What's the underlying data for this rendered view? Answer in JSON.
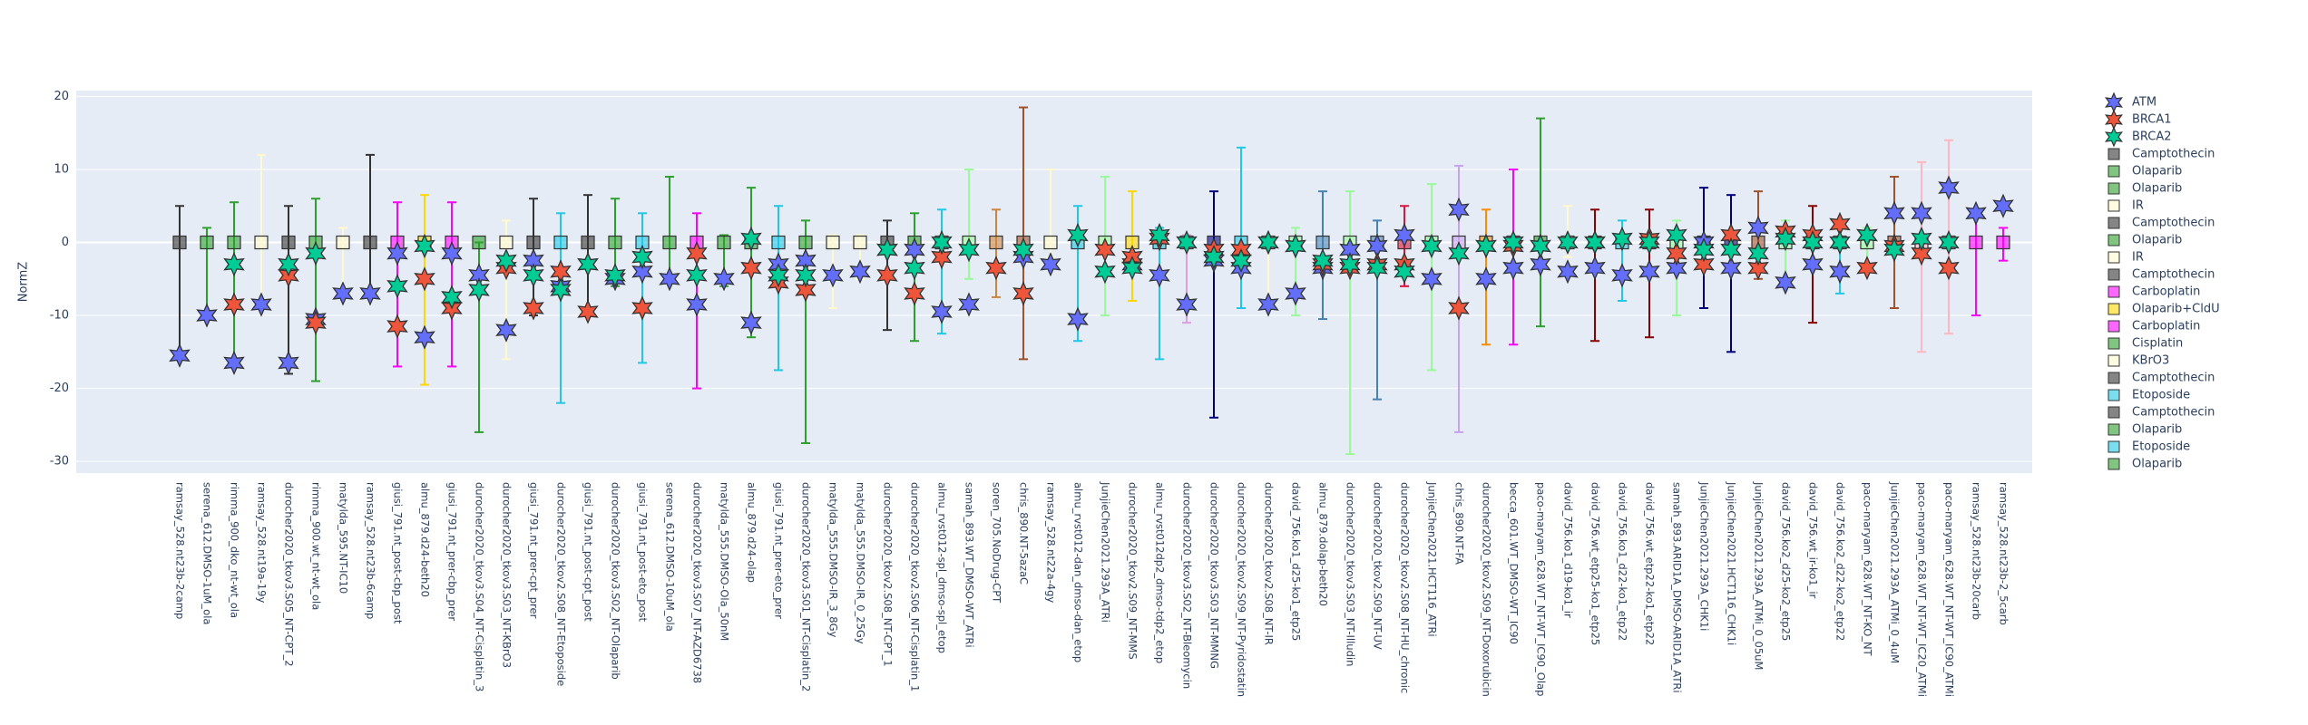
{
  "chart_data": {
    "type": "scatter",
    "y_label": "NormZ",
    "ylim": [
      -31.6,
      20.8
    ],
    "yticks": [
      -30,
      -20,
      -10,
      0,
      10,
      20
    ],
    "grid": true,
    "legend_position": "right",
    "categories": [
      "ramsay_528.nt23b-2camp",
      "serena_612.DMSO-1uM_ola",
      "rimma_900_dko_nt-wt_ola",
      "ramsay_528.nt19a-19y",
      "durocher2020_tkov3.S05_NT-CPT_2",
      "rimma_900.wt_nt-wt_ola",
      "matylda_595.NT-IC10",
      "ramsay_528.nt23b-6camp",
      "giusi_791.nt_post-cbp_post",
      "almu_879.d24-beth20",
      "giusi_791.nt_prer-cbp_prer",
      "durocher2020_tkov3.S04_NT-Cisplatin_3",
      "durocher2020_tkov3.S03_NT-KBrO3",
      "giusi_791.nt_prer-cpt_prer",
      "durocher2020_tkov2.S08_NT-Etoposide",
      "giusi_791.nt_post-cpt_post",
      "durocher2020_tkov3.S02_NT-Olaparib",
      "giusi_791.nt_post-eto_post",
      "serena_612.DMSO-10uM_ola",
      "durocher2020_tkov3.S07_NT-AZD6738",
      "matylda_555.DMSO-Ola_50nM",
      "almu_879.d24-olap",
      "giusi_791.nt_prer-eto_prer",
      "durocher2020_tkov3.S01_NT-Cisplatin_2",
      "matylda_555.DMSO-IR_3_8Gy",
      "matylda_555.DMSO-IR_0_25Gy",
      "durocher2020_tkov2.S08_NT-CPT_1",
      "durocher2020_tkov2.S06_NT-Cisplatin_1",
      "almu_rvst012-spl_dmso-spl_etop",
      "samah_893.WT_DMSO-WT_ATRi",
      "soren_705.NoDrug-CPT",
      "chris_890.NT-5azaC",
      "ramsay_528.nt22a-4gy",
      "almu_rvst012-dan_dmso-dan_etop",
      "JunjieChen2021.293A_ATRi",
      "durocher2020_tkov2.S09_NT-MMS",
      "almu_rvst012dp2_dmso-tdp2_etop",
      "durocher2020_tkov3.S02_NT-Bleomycin",
      "durocher2020_tkov3.S03_NT-MMNG",
      "durocher2020_tkov2.S09_NT-Pyridostatin",
      "durocher2020_tkov2.S08_NT-IR",
      "david_756.ko1_d25-ko1_etp25",
      "almu_879.dolap-beth20",
      "durocher2020_tkov3.S03_NT-Illudin",
      "durocher2020_tkov2.S09_NT-UV",
      "durocher2020_tkov2.S08_NT-HU_chronic",
      "JunjieChen2021.HCT116_ATRi",
      "chris_890.NT-FA",
      "durocher2020_tkov2.S09_NT-Doxorubicin",
      "becca_601.WT_DMSO-WT_IC90",
      "paco-maryam_628.WT_NT-WT_IC90_Olap",
      "david_756.ko1_d19-ko1_ir",
      "david_756.wt_etp25-ko1_etp25",
      "david_756.ko1_d22-ko1_etp22",
      "david_756.wt_etp22-ko1_etp22",
      "samah_893.ARID1A_DMSO-ARID1A_ATRi",
      "JunjieChen2021.293A_CHK1i",
      "JunjieChen2021.HCT116_CHK1i",
      "JunjieChen2021.293A_ATMi_0_05uM",
      "david_756.ko2_d25-ko2_etp25",
      "david_756.wt_ir-ko1_ir",
      "david_756.ko2_d22-ko2_etp22",
      "paco-maryam_628.WT_NT-KO_NT",
      "JunjieChen2021.293A_ATMi_0_4uM",
      "paco-maryam_628.WT_NT-WT_IC20_ATMi",
      "paco-maryam_628.WT_NT-WT_IC90_ATMi",
      "ramsay_528.nt23b-20carb",
      "ramsay_528.nt23b-2_5carb"
    ],
    "series": [
      {
        "name": "ATM",
        "color": "#636efa",
        "values": [
          -15.5,
          -10,
          -16.5,
          -8.5,
          -16.5,
          -10.5,
          -7,
          -7,
          -1.5,
          -13,
          -1.5,
          -4.5,
          -12,
          -2.5,
          -6,
          -3,
          -5,
          -4,
          -5,
          -8.5,
          -5,
          -11,
          -3,
          -2.5,
          -4.5,
          -4,
          -1,
          -1,
          -9.5,
          -8.5,
          null,
          -2,
          -3,
          -10.5,
          null,
          -3,
          -4.5,
          -8.5,
          -2.5,
          -3.5,
          -8.5,
          -7,
          -3.5,
          -1,
          -0.5,
          1,
          -5,
          4.5,
          -5,
          -3.5,
          -3,
          -4,
          -3.5,
          -4.5,
          -4,
          -3.5,
          0,
          -3.5,
          2,
          -5.5,
          -3,
          -4,
          1,
          4,
          4,
          7.5,
          4,
          5
        ]
      },
      {
        "name": "BRCA1",
        "color": "#ef553b",
        "values": [
          null,
          null,
          -8.5,
          null,
          -4.5,
          -11,
          null,
          null,
          -11.5,
          -5,
          -9,
          null,
          -3.5,
          -9,
          -4,
          -9.5,
          null,
          -9,
          null,
          -1.5,
          null,
          -3.5,
          -5.5,
          -6.5,
          null,
          null,
          -4.5,
          -7,
          -2,
          null,
          -3.5,
          -7,
          null,
          null,
          -1,
          -2,
          0.5,
          null,
          -1,
          -1,
          0,
          -0.5,
          -3,
          -3.5,
          -3,
          -3,
          null,
          -9,
          -0.5,
          -0.5,
          -0.5,
          null,
          0,
          null,
          0.5,
          -1.5,
          -3,
          1,
          -3.5,
          1.5,
          1,
          2.5,
          -3.5,
          -0.5,
          -1.5,
          -3.5,
          null,
          null
        ]
      },
      {
        "name": "BRCA2",
        "color": "#00cc96",
        "values": [
          null,
          null,
          -3,
          null,
          -3,
          -1.5,
          null,
          null,
          -6,
          -0.5,
          -7.5,
          -6.5,
          -2.5,
          -4.5,
          -6.5,
          -3,
          -4.5,
          -2,
          null,
          -4.5,
          null,
          0.5,
          -4.5,
          -4.5,
          null,
          null,
          -1,
          -3.5,
          0,
          -1,
          null,
          -1,
          null,
          1,
          -4,
          -3.5,
          1,
          0,
          -2,
          -2.5,
          0,
          -0.5,
          -2.5,
          -3,
          -3.5,
          -4,
          -0.5,
          -1.5,
          -0.5,
          0,
          -0.5,
          0,
          0,
          0.5,
          0,
          1,
          -1,
          -1,
          -1.5,
          0.5,
          0,
          0,
          1,
          -1,
          0.5,
          0,
          null,
          null
        ]
      }
    ],
    "treatments": {
      "values": [
        0,
        0,
        0,
        0,
        0,
        0,
        0,
        0,
        0,
        0,
        0,
        0,
        0,
        0,
        0,
        0,
        0,
        0,
        0,
        0,
        0,
        0,
        0,
        0,
        0,
        0,
        0,
        0,
        0,
        0,
        0,
        0,
        0,
        0,
        0,
        0,
        0,
        0,
        0,
        0,
        0,
        0,
        0,
        0,
        0,
        0,
        0,
        0,
        0,
        0,
        0,
        0,
        0,
        0,
        0,
        0,
        0,
        0,
        0,
        0,
        0,
        0,
        0,
        0,
        0,
        0,
        0,
        0
      ],
      "error_plus": [
        5,
        2,
        5.5,
        12,
        5,
        6,
        2,
        12,
        5.5,
        6.5,
        5.5,
        0,
        3,
        6,
        4,
        6.5,
        6,
        4,
        9,
        4,
        1,
        7.5,
        5,
        3,
        1,
        1,
        3,
        4,
        4.5,
        10,
        4.5,
        18.5,
        10,
        5,
        9,
        7,
        2,
        1,
        7,
        13,
        0,
        2,
        7,
        7,
        3,
        5,
        8,
        10.5,
        4.5,
        10,
        17,
        5,
        4.5,
        3,
        4.5,
        3,
        7.5,
        6.5,
        7,
        3,
        5,
        3,
        2,
        9,
        11,
        14,
        4,
        2
      ],
      "error_minus": [
        16,
        10,
        17,
        9,
        18,
        19,
        7,
        7,
        17,
        19.5,
        17,
        26,
        16,
        10,
        22,
        10,
        6,
        16.5,
        5,
        20,
        6,
        13,
        17.5,
        27.5,
        9,
        5,
        12,
        13.5,
        12.5,
        5,
        7.5,
        16,
        2,
        13.5,
        10,
        8,
        16,
        11,
        24,
        9,
        9,
        10,
        10.5,
        29,
        21.5,
        6,
        17.5,
        26,
        14,
        14,
        11.5,
        2,
        13.5,
        8,
        13,
        10,
        9,
        15,
        5,
        6,
        11,
        7,
        4,
        9,
        15,
        12.5,
        10,
        2.5
      ],
      "colors": [
        "#333333",
        "#2ca02c",
        "#2ca02c",
        "#fffacd",
        "#333333",
        "#2ca02c",
        "#fffacd",
        "#333333",
        "#ff00ff",
        "#ffd700",
        "#ff00ff",
        "#2ca02c",
        "#fffacd",
        "#333333",
        "#1ec8e6",
        "#333333",
        "#2ca02c",
        "#1ec8e6",
        "#2ca02c",
        "#ff00ff",
        "#2ca02c",
        "#2ca02c",
        "#1ec8e6",
        "#2ca02c",
        "#fffacd",
        "#fffacd",
        "#333333",
        "#2ca02c",
        "#1ec8e6",
        "#98fb98",
        "#cd853f",
        "#a0522d",
        "#fffacd",
        "#1ec8e6",
        "#98fb98",
        "#ffd700",
        "#1ec8e6",
        "#dda0dd",
        "#000080",
        "#1ec8e6",
        "#fffacd",
        "#98fb98",
        "#4682b4",
        "#98fb98",
        "#4682b4",
        "#dc143c",
        "#98fb98",
        "#c8a2f0",
        "#ff8c00",
        "#ff00ff",
        "#2ca02c",
        "#fffacd",
        "#8b0000",
        "#1ec8e6",
        "#8b0000",
        "#98fb98",
        "#000080",
        "#000080",
        "#a0522d",
        "#98fb98",
        "#8b0000",
        "#1ec8e6",
        "#98fb98",
        "#a0522d",
        "#ffb6c1",
        "#ffb6c1",
        "#ff00ff",
        "#ff00ff"
      ]
    },
    "legend": [
      {
        "name": "Camptothecin",
        "color": "#333333"
      },
      {
        "name": "Olaparib",
        "color": "#2ca02c"
      },
      {
        "name": "Olaparib",
        "color": "#2ca02c"
      },
      {
        "name": "IR",
        "color": "#fffacd"
      },
      {
        "name": "Camptothecin",
        "color": "#333333"
      },
      {
        "name": "Olaparib",
        "color": "#2ca02c"
      },
      {
        "name": "IR",
        "color": "#fffacd"
      },
      {
        "name": "Camptothecin",
        "color": "#333333"
      },
      {
        "name": "Carboplatin",
        "color": "#ff00ff"
      },
      {
        "name": "Olaparib+CldU",
        "color": "#ffd700"
      },
      {
        "name": "Carboplatin",
        "color": "#ff00ff"
      },
      {
        "name": "Cisplatin",
        "color": "#2ca02c"
      },
      {
        "name": "KBrO3",
        "color": "#fffacd"
      },
      {
        "name": "Camptothecin",
        "color": "#333333"
      },
      {
        "name": "Etoposide",
        "color": "#1ec8e6"
      },
      {
        "name": "Camptothecin",
        "color": "#333333"
      },
      {
        "name": "Olaparib",
        "color": "#2ca02c"
      },
      {
        "name": "Etoposide",
        "color": "#1ec8e6"
      },
      {
        "name": "Olaparib",
        "color": "#2ca02c"
      }
    ]
  }
}
